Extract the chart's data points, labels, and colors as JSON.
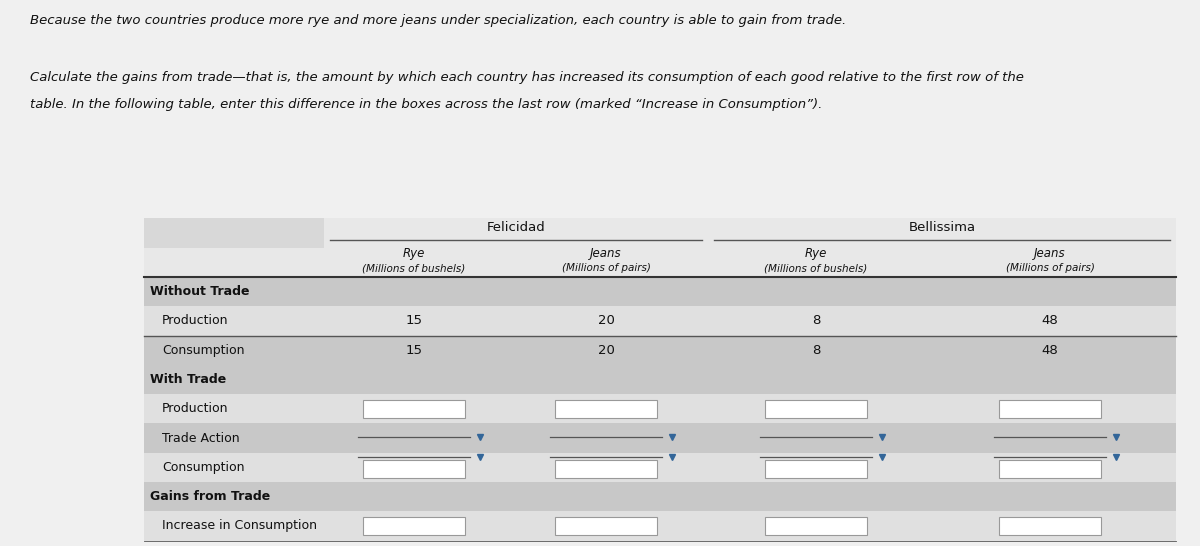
{
  "title_line1": "Because the two countries produce more rye and more jeans under specialization, each country is able to gain from trade.",
  "title_line2_a": "Calculate the gains from trade—that is, the amount by which each country has increased its consumption of each good relative to the first row of the",
  "title_line2_b": "table. In the following table, enter this difference in the boxes across the last row (marked “Increase in Consumption”).",
  "country1": "Felicidad",
  "country2": "Bellissima",
  "col_headers_line1": [
    "Rye",
    "Jeans",
    "Rye",
    "Jeans"
  ],
  "col_headers_line2": [
    "(Millions of bushels)",
    "(Millions of pairs)",
    "(Millions of bushels)",
    "(Millions of pairs)"
  ],
  "row_labels": [
    "Without Trade",
    "Production",
    "Consumption",
    "With Trade",
    "Production",
    "Trade Action",
    "Consumption",
    "Gains from Trade",
    "Increase in Consumption"
  ],
  "row_bold": [
    true,
    false,
    false,
    true,
    false,
    false,
    false,
    true,
    false
  ],
  "production_notrade": [
    "15",
    "20",
    "8",
    "48"
  ],
  "consumption_notrade": [
    "15",
    "20",
    "8",
    "48"
  ],
  "bg_top": "#f0f0f0",
  "bg_table": "#d8d8d8",
  "row_colors": [
    "#c8c8c8",
    "#e0e0e0",
    "#c8c8c8",
    "#c8c8c8",
    "#e0e0e0",
    "#c8c8c8",
    "#e0e0e0",
    "#c8c8c8",
    "#e0e0e0"
  ],
  "arrow_color": "#336699",
  "text_color": "#111111",
  "box_stroke": "#999999",
  "line_color": "#555555"
}
